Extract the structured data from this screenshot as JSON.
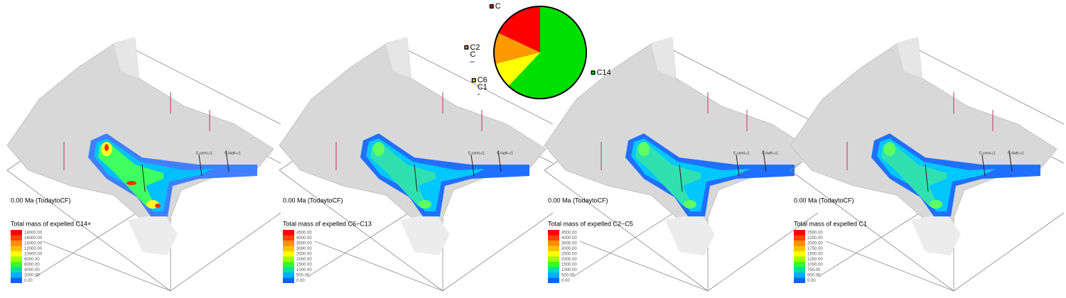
{
  "chart_data": {
    "type": "pie",
    "categories": [
      [
        "C14"
      ],
      [
        "C6",
        "C1",
        "-"
      ],
      [
        "C2",
        "C",
        "–"
      ],
      [
        "C"
      ]
    ],
    "values": [
      62,
      9,
      11,
      18
    ],
    "colors": [
      "#00e000",
      "#ffff00",
      "#ff9900",
      "#ff0000"
    ]
  },
  "panels": [
    {
      "time": "0.00 Ma (TodaytoCF)",
      "legend_title": "Total mass of expelled  C14+",
      "legend_labels": [
        "18000.00",
        "16000.00",
        "14000.00",
        "12000.00",
        "10000.00",
        "8000.00",
        "6000.00",
        "4000.00",
        "2000.00",
        "0.00"
      ]
    },
    {
      "time": "0.00 Ma (TodaytoCF)",
      "legend_title": "Total mass of expelled  C6−C13",
      "legend_labels": [
        "4500.00",
        "4000.00",
        "3500.00",
        "3000.00",
        "2500.00",
        "2000.00",
        "1500.00",
        "1000.00",
        "500.00",
        "0.00"
      ]
    },
    {
      "time": "0.00 Ma (TodaytoCF)",
      "legend_title": "Total mass of expelled  C2−C5",
      "legend_labels": [
        "4500.00",
        "4000.00",
        "3500.00",
        "3000.00",
        "2500.00",
        "2000.00",
        "1500.00",
        "1000.00",
        "500.00",
        "0.00"
      ]
    },
    {
      "time": "0.00 Ma (TodaytoCF)",
      "legend_title": "Total mass of expelled  C1",
      "legend_labels": [
        "2500.00",
        "2250.00",
        "2000.00",
        "1750.00",
        "1500.00",
        "1250.00",
        "1000.00",
        "750.00",
        "500.00",
        "0.00"
      ]
    }
  ],
  "wells": [
    "E-cemt-c1",
    "C-Nath-c1"
  ]
}
